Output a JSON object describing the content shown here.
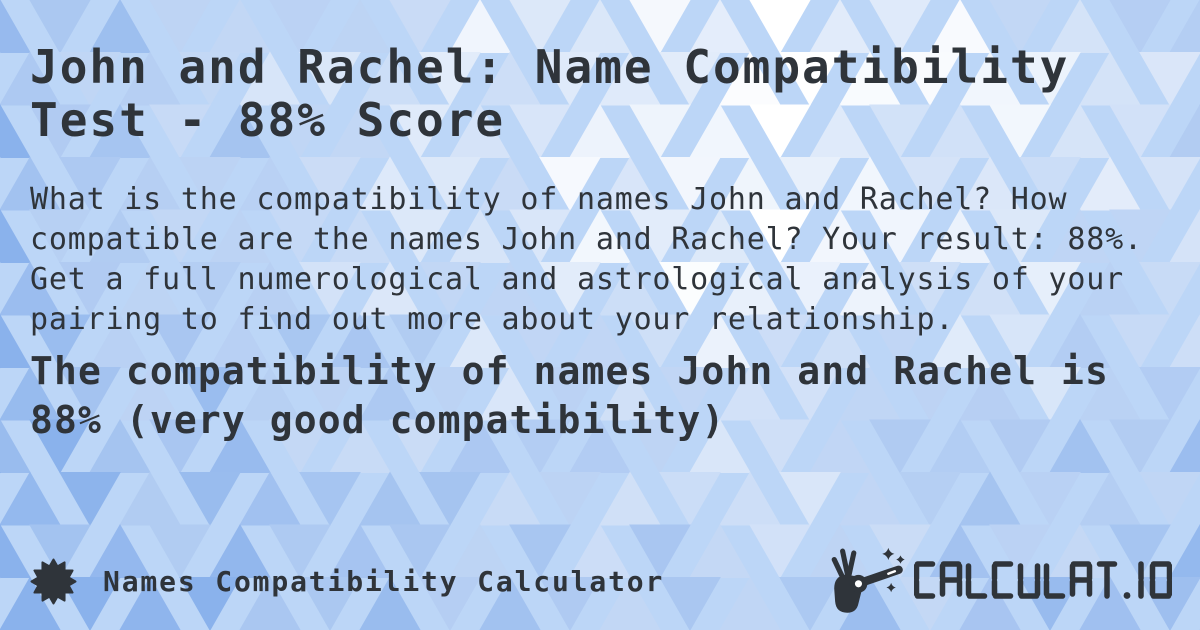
{
  "page": {
    "title": "John and Rachel: Name Compatibility\nTest - 88% Score",
    "description": "What is the compatibility of names John and Rachel? How\ncompatible are the names John and Rachel? Your result: 88%.\nGet a full numerological and astrological analysis of your\npairing to find out more about your relationship.",
    "result": "The compatibility of names John and Rachel is\n88% (very good compatibility)"
  },
  "entities": {
    "name_1": "John",
    "name_2": "Rachel",
    "score": "88%",
    "verdict": "very good compatibility"
  },
  "footer": {
    "app_name": "Names Compatibility Calculator"
  },
  "branding": {
    "logo_text": "CALCULAT.IO"
  },
  "icons": {
    "seal": "starburst-seal",
    "logo_mark": "hand-with-magic-wand-and-sparkles"
  },
  "colors": {
    "text": "#2f343a",
    "background_light": "#ffffff",
    "background_deep": "#8ab2ec"
  }
}
